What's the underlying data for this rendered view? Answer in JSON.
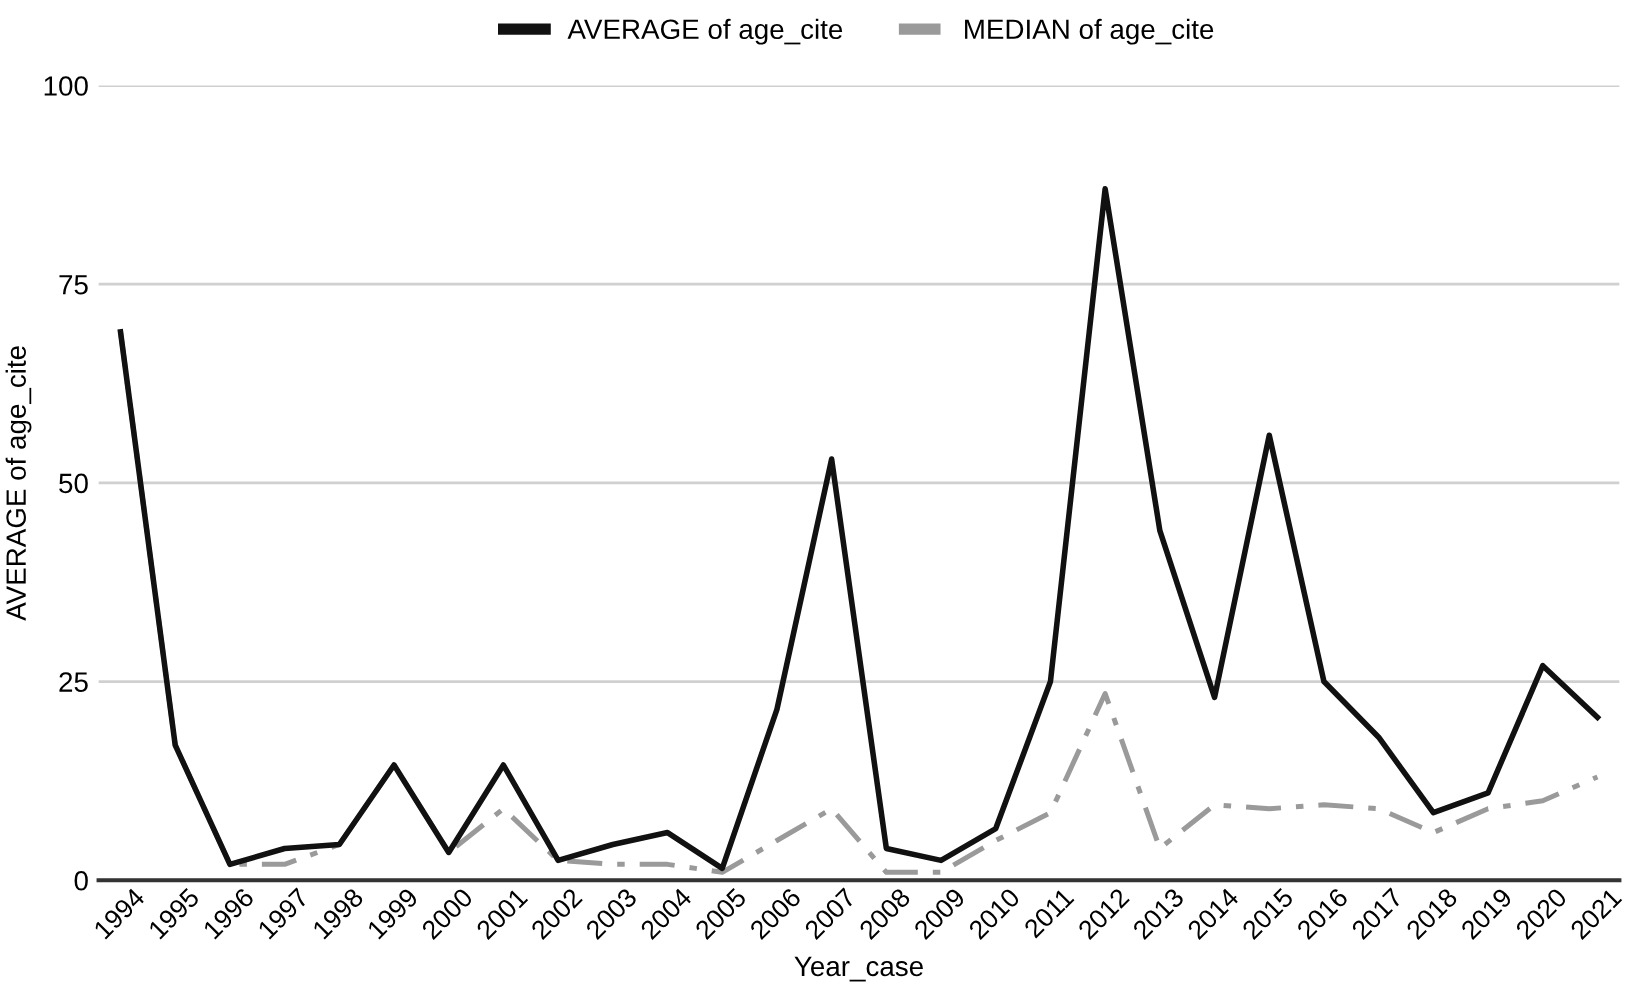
{
  "chart_data": {
    "type": "line",
    "xlabel": "Year_case",
    "ylabel": "AVERAGE of age_cite",
    "categories": [
      "1994",
      "1995",
      "1996",
      "1997",
      "1998",
      "1999",
      "2000",
      "2001",
      "2002",
      "2003",
      "2004",
      "2005",
      "2006",
      "2007",
      "2008",
      "2009",
      "2010",
      "2011",
      "2012",
      "2013",
      "2014",
      "2015",
      "2016",
      "2017",
      "2018",
      "2019",
      "2020",
      "2021"
    ],
    "series": [
      {
        "name": "AVERAGE of age_cite",
        "color": "#111111",
        "line_style": "solid",
        "values": [
          69,
          17,
          2,
          4,
          4.5,
          14.5,
          3.5,
          14.5,
          2.5,
          4.5,
          6,
          1.5,
          21.5,
          53,
          4,
          2.5,
          6.5,
          25,
          87,
          44,
          23,
          56,
          25,
          18,
          8.5,
          11,
          27,
          20.5
        ]
      },
      {
        "name": "MEDIAN of age_cite",
        "color": "#9a9a9a",
        "line_style": "dashed",
        "values": [
          69,
          17,
          2,
          2,
          4.5,
          14.5,
          3.5,
          9,
          2.5,
          2,
          2,
          1,
          5,
          9,
          1,
          1,
          5,
          8.5,
          23.5,
          4,
          9.5,
          9,
          9.5,
          9,
          6,
          9,
          10,
          13
        ]
      }
    ],
    "ylim": [
      0,
      100
    ],
    "yticks": [
      0,
      25,
      50,
      75,
      100
    ],
    "grid": "y",
    "legend": "top",
    "marker": "none"
  }
}
